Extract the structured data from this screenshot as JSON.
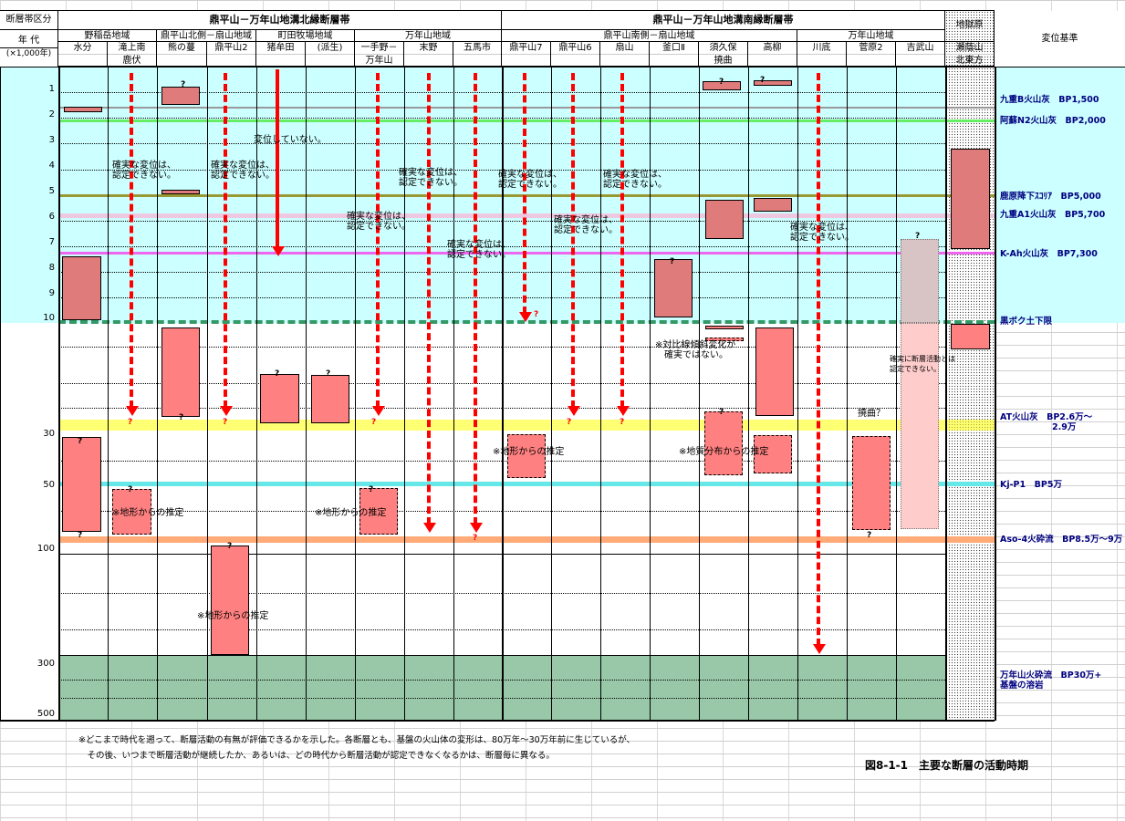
{
  "header": {
    "section_label": "断層帯区分",
    "age_label": "年 代",
    "age_unit": "(×1,000年)",
    "north_title": "鼎平山－万年山地溝北縁断層帯",
    "south_title": "鼎平山－万年山地溝南縁断層帯",
    "jigokubaru": "地獄原",
    "reference_label": "変位基準",
    "regions": [
      "野稲岳地域",
      "鼎平山北側－扇山地域",
      "町田牧場地域",
      "万年山地域",
      "鼎平山南側－扇山地域",
      "万年山地域"
    ],
    "faults": [
      {
        "l1": "水分",
        "l2": ""
      },
      {
        "l1": "滝上南",
        "l2": "鹿伏"
      },
      {
        "l1": "熊の蔓",
        "l2": ""
      },
      {
        "l1": "鼎平山2",
        "l2": ""
      },
      {
        "l1": "猪牟田",
        "l2": ""
      },
      {
        "l1": "(派生)",
        "l2": ""
      },
      {
        "l1": "一手野－",
        "l2": "万年山"
      },
      {
        "l1": "末野",
        "l2": ""
      },
      {
        "l1": "五馬市",
        "l2": ""
      },
      {
        "l1": "鼎平山7",
        "l2": ""
      },
      {
        "l1": "鼎平山6",
        "l2": ""
      },
      {
        "l1": "扇山",
        "l2": ""
      },
      {
        "l1": "釜口Ⅱ",
        "l2": ""
      },
      {
        "l1": "須久保",
        "l2": "撓曲"
      },
      {
        "l1": "高柳",
        "l2": ""
      },
      {
        "l1": "川底",
        "l2": ""
      },
      {
        "l1": "菅原2",
        "l2": ""
      },
      {
        "l1": "吉武山",
        "l2": ""
      },
      {
        "l1": "瀬蔭山",
        "l2": "北東方"
      }
    ]
  },
  "axis": [
    "1",
    "2",
    "3",
    "4",
    "5",
    "6",
    "7",
    "8",
    "9",
    "10",
    "30",
    "50",
    "100",
    "300",
    "500"
  ],
  "references": [
    "九重B火山灰　BP1,500",
    "阿蘇N2火山灰　BP2,000",
    "鹿原降下ｽｺﾘｱ　BP5,000",
    "九重A1火山灰　BP5,700",
    "K-Ah火山灰　BP7,300",
    "黒ボク土下限",
    "AT火山灰　BP2.6万～\n　　　　　　2.9万",
    "Kj-P1　BP5万",
    "Aso-4火砕流　BP8.5万～9万",
    "万年山火砕流　BP30万+\n基盤の溶岩"
  ],
  "annotations": {
    "no_displacement": "変位していない。",
    "uncertain": "確実な変位は、\n認定できない。",
    "terrain": "※地形からの推定",
    "geology": "※地質分布からの推定",
    "tilt": "※対比線傾斜変化が\n　確実ではない。",
    "flexure": "撓曲？",
    "fault_uncertain": "確実に断層活動とは\n認定できない。",
    "question": "?"
  },
  "footnote": [
    "※どこまで時代を遡って、断層活動の有無が評価できるかを示した。各断層とも、基盤の火山体の変形は、80万年～30万年前に生じているが、",
    "　その後、いつまで断層活動が継続したか、あるいは、どの時代から断層活動が認定できなくなるかは、断層毎に異なる。"
  ],
  "figure_caption": "図8-1-1　主要な断層の活動時期",
  "colors": {
    "cyan": "#ccffff",
    "box": "#e07b7b",
    "box_light": "#ff8080",
    "arrow": "#ff0000",
    "green_base": "#99c8a8",
    "ref_text": "#000080"
  }
}
